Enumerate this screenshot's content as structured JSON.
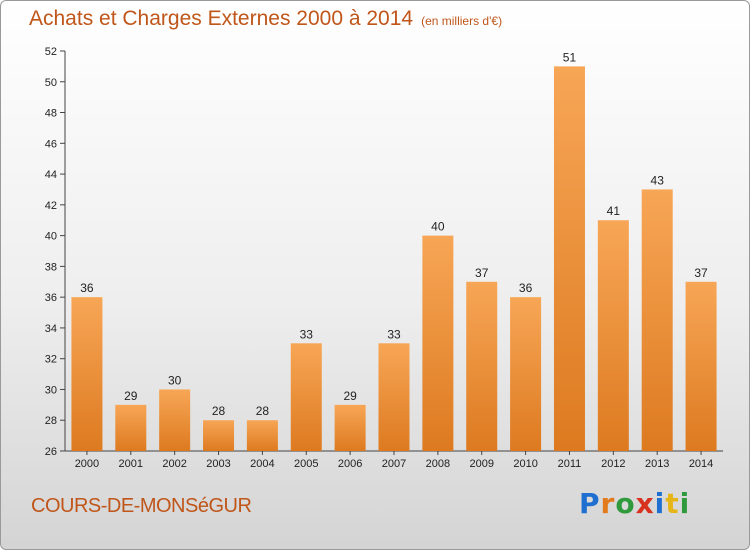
{
  "header": {
    "title": "Achats et Charges Externes 2000 à 2014",
    "unit": "(en milliers d'€)"
  },
  "footer": {
    "location": "COURS-DE-MONSéGUR",
    "logo_text": "Proxiti",
    "logo_letters": [
      {
        "ch": "P",
        "color": "#1f6fd0"
      },
      {
        "ch": "r",
        "color": "#e37b1d"
      },
      {
        "ch": "o",
        "color": "#2e9a3c"
      },
      {
        "ch": "x",
        "color": "#d8321f"
      },
      {
        "ch": "i",
        "color": "#1f6fd0"
      },
      {
        "ch": "t",
        "color": "#e6b517"
      },
      {
        "ch": "i",
        "color": "#2e9a3c"
      }
    ]
  },
  "colors": {
    "bar_top": "#f7a656",
    "bar_bottom": "#dd7a20",
    "title": "#c0561a",
    "axis": "#444444"
  },
  "chart_data": {
    "type": "bar",
    "title": "Achats et Charges Externes 2000 à 2014",
    "subtitle": "(en milliers d'€)",
    "xlabel": "",
    "ylabel": "",
    "categories": [
      "2000",
      "2001",
      "2002",
      "2003",
      "2004",
      "2005",
      "2006",
      "2007",
      "2008",
      "2009",
      "2010",
      "2011",
      "2012",
      "2013",
      "2014"
    ],
    "values": [
      36,
      29,
      30,
      28,
      28,
      33,
      29,
      33,
      40,
      37,
      36,
      51,
      41,
      43,
      37
    ],
    "ylim": [
      26,
      52
    ],
    "yticks": [
      26,
      28,
      30,
      32,
      34,
      36,
      38,
      40,
      42,
      44,
      46,
      48,
      50,
      52
    ],
    "grid": false,
    "legend": "none",
    "data_labels": true
  }
}
